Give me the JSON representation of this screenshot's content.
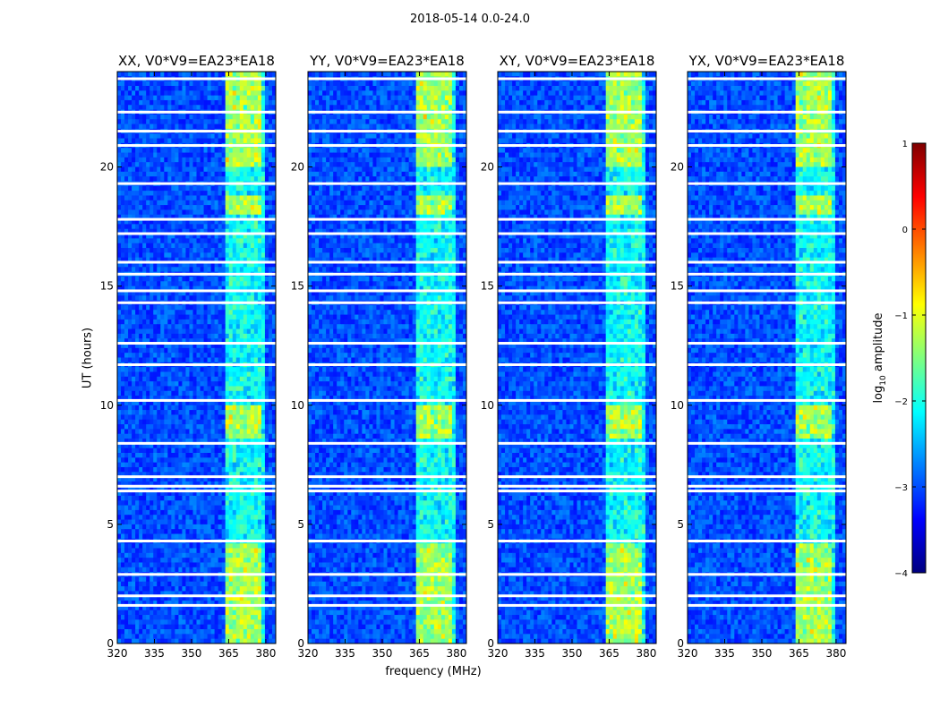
{
  "figure_title": "2018-05-14 0.0-24.0",
  "colormap": [
    "#00007f",
    "#0000ff",
    "#007fff",
    "#00ffff",
    "#7fff7f",
    "#ffff00",
    "#ff7f00",
    "#ff0000",
    "#7f0000"
  ],
  "chart_data": [
    {
      "type": "heatmap",
      "title": "XX, V0*V9=EA23*EA18",
      "xlabel": "",
      "ylabel": "UT (hours)",
      "x_ticks": [
        "320",
        "335",
        "350",
        "365",
        "380"
      ],
      "y_ticks": [
        "0",
        "5",
        "10",
        "15",
        "20"
      ],
      "xlim": [
        320,
        384
      ],
      "ylim": [
        0,
        24
      ],
      "rfi_band_mhz": [
        363,
        380
      ],
      "flagged_rows_ut": [
        1.6,
        2.0,
        2.9,
        4.3,
        6.4,
        6.6,
        7.0,
        8.4,
        10.2,
        11.7,
        12.6,
        14.3,
        14.8,
        15.5,
        16.0,
        17.2,
        17.8,
        19.3,
        20.9,
        21.5,
        22.3,
        23.7
      ]
    },
    {
      "type": "heatmap",
      "title": "YY, V0*V9=EA23*EA18",
      "xlabel": "frequency (MHz)",
      "ylabel": "",
      "x_ticks": [
        "320",
        "335",
        "350",
        "365",
        "380"
      ],
      "y_ticks": [
        "0",
        "5",
        "10",
        "15",
        "20"
      ],
      "xlim": [
        320,
        384
      ],
      "ylim": [
        0,
        24
      ],
      "rfi_band_mhz": [
        363,
        380
      ],
      "flagged_rows_ut": [
        1.6,
        2.0,
        2.9,
        4.3,
        6.4,
        6.6,
        7.0,
        8.4,
        10.2,
        11.7,
        12.6,
        14.3,
        14.8,
        15.5,
        16.0,
        17.2,
        17.8,
        19.3,
        20.9,
        21.5,
        22.3,
        23.7
      ]
    },
    {
      "type": "heatmap",
      "title": "XY, V0*V9=EA23*EA18",
      "xlabel": "",
      "ylabel": "",
      "x_ticks": [
        "320",
        "335",
        "350",
        "365",
        "380"
      ],
      "y_ticks": [
        "0",
        "5",
        "10",
        "15",
        "20"
      ],
      "xlim": [
        320,
        384
      ],
      "ylim": [
        0,
        24
      ],
      "rfi_band_mhz": [
        363,
        380
      ],
      "flagged_rows_ut": [
        1.6,
        2.0,
        2.9,
        4.3,
        6.4,
        6.6,
        7.0,
        8.4,
        10.2,
        11.7,
        12.6,
        14.3,
        14.8,
        15.5,
        16.0,
        17.2,
        17.8,
        19.3,
        20.9,
        21.5,
        22.3,
        23.7
      ]
    },
    {
      "type": "heatmap",
      "title": "YX, V0*V9=EA23*EA18",
      "xlabel": "",
      "ylabel": "",
      "x_ticks": [
        "320",
        "335",
        "350",
        "365",
        "380"
      ],
      "y_ticks": [
        "0",
        "5",
        "10",
        "15",
        "20"
      ],
      "xlim": [
        320,
        384
      ],
      "ylim": [
        0,
        24
      ],
      "rfi_band_mhz": [
        363,
        380
      ],
      "flagged_rows_ut": [
        1.6,
        2.0,
        2.9,
        4.3,
        6.4,
        6.6,
        7.0,
        8.4,
        10.2,
        11.7,
        12.6,
        14.3,
        14.8,
        15.5,
        16.0,
        17.2,
        17.8,
        19.3,
        20.9,
        21.5,
        22.3,
        23.7
      ]
    }
  ],
  "colorbar": {
    "label_prefix": "log",
    "label_sub": "10",
    "label_suffix": " amplitude",
    "range": [
      -4,
      1
    ],
    "ticks": [
      "1",
      "0",
      "−1",
      "−2",
      "−3",
      "−4"
    ]
  }
}
